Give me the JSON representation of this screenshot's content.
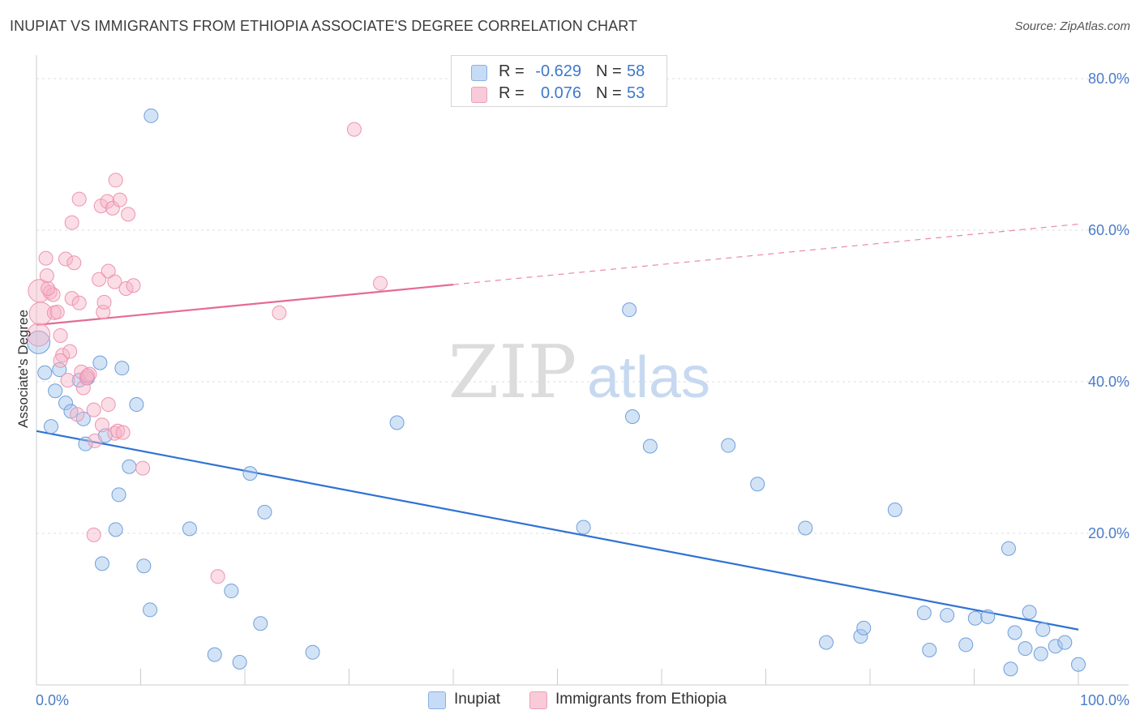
{
  "title": "INUPIAT VS IMMIGRANTS FROM ETHIOPIA ASSOCIATE'S DEGREE CORRELATION CHART",
  "source": "Source: ZipAtlas.com",
  "watermark": {
    "zip": "ZIP",
    "atlas": "atlas"
  },
  "legend_top": {
    "rows": [
      {
        "r_label": "R =",
        "r_value": "-0.629",
        "n_label": "N =",
        "n_value": "58"
      },
      {
        "r_label": "R =",
        "r_value": "0.076",
        "n_label": "N =",
        "n_value": "53"
      }
    ]
  },
  "legend_bottom": [
    {
      "label": "Inupiat"
    },
    {
      "label": "Immigrants from Ethiopia"
    }
  ],
  "chart_data": {
    "type": "scatter",
    "ylabel": "Associate's Degree",
    "xlabel": "",
    "xlim": [
      0,
      100
    ],
    "ylim": [
      0,
      80
    ],
    "x_tick_labels": [
      "0.0%",
      "100.0%"
    ],
    "y_ticks": [
      20,
      40,
      60,
      80
    ],
    "y_tick_labels": [
      "20.0%",
      "40.0%",
      "60.0%",
      "80.0%"
    ],
    "grid": true,
    "legend_position": "top-center",
    "colors": {
      "inupiat": "#9ec0ec",
      "inupiat_line": "#2f72d4",
      "ethiopia": "#f6b3c8",
      "ethiopia_line": "#e56b93"
    },
    "series": [
      {
        "name": "Inupiat",
        "r": -0.629,
        "n": 58,
        "trend": {
          "x0": 0,
          "y0": 33.5,
          "x1": 100,
          "y1": 7.3,
          "dashed_from": null
        },
        "points": [
          [
            0.2,
            45.2
          ],
          [
            0.8,
            41.2
          ],
          [
            1.4,
            34.1
          ],
          [
            1.8,
            38.8
          ],
          [
            2.2,
            41.6
          ],
          [
            2.8,
            37.2
          ],
          [
            3.3,
            36.1
          ],
          [
            4.1,
            40.2
          ],
          [
            4.9,
            40.5
          ],
          [
            4.5,
            35.1
          ],
          [
            6.1,
            42.5
          ],
          [
            6.6,
            32.9
          ],
          [
            4.7,
            31.8
          ],
          [
            8.2,
            41.8
          ],
          [
            9.6,
            37.0
          ],
          [
            8.9,
            28.8
          ],
          [
            7.9,
            25.1
          ],
          [
            7.6,
            20.5
          ],
          [
            6.3,
            16.0
          ],
          [
            10.3,
            15.7
          ],
          [
            11.0,
            75.1
          ],
          [
            10.9,
            9.9
          ],
          [
            14.7,
            20.6
          ],
          [
            18.7,
            12.4
          ],
          [
            20.5,
            27.9
          ],
          [
            21.9,
            22.8
          ],
          [
            21.5,
            8.1
          ],
          [
            17.1,
            4.0
          ],
          [
            19.5,
            3.0
          ],
          [
            26.5,
            4.3
          ],
          [
            34.6,
            34.6
          ],
          [
            52.5,
            20.8
          ],
          [
            56.9,
            49.5
          ],
          [
            57.2,
            35.4
          ],
          [
            58.9,
            31.5
          ],
          [
            66.4,
            31.6
          ],
          [
            69.2,
            26.5
          ],
          [
            73.8,
            20.7
          ],
          [
            75.8,
            5.6
          ],
          [
            79.1,
            6.4
          ],
          [
            79.4,
            7.5
          ],
          [
            82.4,
            23.1
          ],
          [
            85.2,
            9.5
          ],
          [
            85.7,
            4.6
          ],
          [
            87.4,
            9.2
          ],
          [
            89.2,
            5.3
          ],
          [
            90.1,
            8.8
          ],
          [
            91.3,
            9.0
          ],
          [
            93.3,
            18.0
          ],
          [
            93.9,
            6.9
          ],
          [
            93.5,
            2.1
          ],
          [
            94.9,
            4.8
          ],
          [
            95.3,
            9.6
          ],
          [
            96.4,
            4.1
          ],
          [
            96.6,
            7.3
          ],
          [
            97.8,
            5.1
          ],
          [
            98.7,
            5.6
          ],
          [
            100.0,
            2.7
          ]
        ]
      },
      {
        "name": "Immigrants from Ethiopia",
        "r": 0.076,
        "n": 53,
        "trend": {
          "x0": 0,
          "y0": 47.5,
          "x1": 100,
          "y1": 60.8,
          "dashed_from": 40
        },
        "points": [
          [
            0.2,
            46.2
          ],
          [
            0.4,
            49.0
          ],
          [
            0.3,
            52.0
          ],
          [
            0.9,
            56.3
          ],
          [
            1.0,
            54.0
          ],
          [
            1.3,
            51.8
          ],
          [
            1.6,
            51.5
          ],
          [
            1.7,
            49.1
          ],
          [
            2.0,
            49.2
          ],
          [
            2.3,
            46.1
          ],
          [
            2.5,
            43.5
          ],
          [
            2.3,
            42.8
          ],
          [
            2.8,
            56.2
          ],
          [
            3.2,
            44.0
          ],
          [
            3.0,
            40.2
          ],
          [
            3.4,
            51.0
          ],
          [
            3.4,
            61.0
          ],
          [
            3.6,
            55.7
          ],
          [
            3.9,
            35.7
          ],
          [
            4.1,
            50.4
          ],
          [
            4.1,
            64.1
          ],
          [
            4.3,
            41.3
          ],
          [
            4.5,
            39.2
          ],
          [
            4.8,
            40.5
          ],
          [
            5.1,
            41.0
          ],
          [
            5.5,
            36.3
          ],
          [
            5.6,
            32.2
          ],
          [
            5.5,
            19.8
          ],
          [
            6.0,
            53.5
          ],
          [
            6.3,
            34.3
          ],
          [
            6.2,
            63.2
          ],
          [
            6.4,
            49.2
          ],
          [
            6.5,
            50.5
          ],
          [
            6.8,
            63.8
          ],
          [
            6.9,
            54.6
          ],
          [
            6.9,
            37.0
          ],
          [
            7.5,
            53.2
          ],
          [
            7.5,
            33.2
          ],
          [
            7.3,
            62.9
          ],
          [
            7.6,
            66.6
          ],
          [
            7.8,
            33.5
          ],
          [
            8.0,
            64.0
          ],
          [
            8.3,
            33.3
          ],
          [
            8.6,
            52.3
          ],
          [
            8.8,
            62.1
          ],
          [
            9.3,
            52.7
          ],
          [
            10.2,
            28.6
          ],
          [
            17.4,
            14.3
          ],
          [
            23.3,
            49.1
          ],
          [
            30.5,
            73.3
          ],
          [
            33.0,
            53.0
          ],
          [
            4.9,
            40.8
          ],
          [
            1.1,
            52.3
          ]
        ]
      }
    ]
  }
}
